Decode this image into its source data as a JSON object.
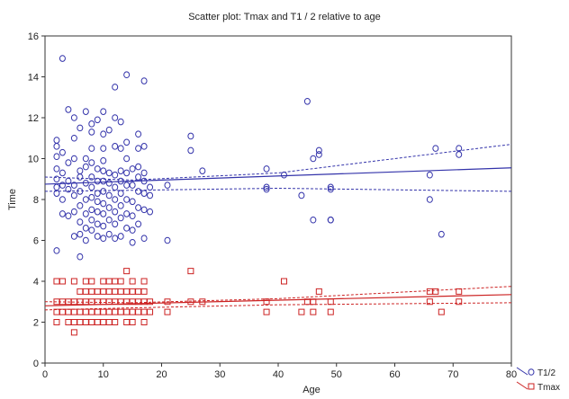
{
  "chart_data": {
    "type": "scatter",
    "title": "Scatter plot: Tmax and T1 / 2 relative to age",
    "xlabel": "Age",
    "ylabel": "Time",
    "xlim": [
      0,
      80
    ],
    "ylim": [
      0,
      16
    ],
    "xticks": [
      "0",
      "10",
      "20",
      "30",
      "40",
      "50",
      "60",
      "70",
      "80"
    ],
    "yticks": [
      "0",
      "2",
      "4",
      "6",
      "8",
      "10",
      "12",
      "14",
      "16"
    ],
    "grid": false,
    "legend_position": "bottom-right-outside",
    "series": [
      {
        "name": "T1/2",
        "color": "#3333aa",
        "marker": "circle",
        "fit_line": {
          "x": [
            0,
            80
          ],
          "y": [
            8.75,
            9.55
          ]
        },
        "confidence_upper": {
          "x": [
            0,
            15,
            40,
            80
          ],
          "y": [
            9.1,
            8.95,
            9.3,
            10.7
          ]
        },
        "confidence_lower": {
          "x": [
            0,
            15,
            40,
            80
          ],
          "y": [
            8.4,
            8.45,
            8.55,
            8.4
          ]
        },
        "points": [
          [
            2,
            5.5
          ],
          [
            2,
            8.3
          ],
          [
            2,
            8.6
          ],
          [
            2,
            9.0
          ],
          [
            2,
            9.5
          ],
          [
            2,
            10.1
          ],
          [
            2,
            10.6
          ],
          [
            2,
            10.9
          ],
          [
            3,
            7.3
          ],
          [
            3,
            8.0
          ],
          [
            3,
            8.7
          ],
          [
            3,
            9.3
          ],
          [
            3,
            10.3
          ],
          [
            3,
            14.9
          ],
          [
            4,
            7.2
          ],
          [
            4,
            8.5
          ],
          [
            4,
            8.9
          ],
          [
            4,
            9.8
          ],
          [
            4,
            12.4
          ],
          [
            5,
            6.2
          ],
          [
            5,
            7.4
          ],
          [
            5,
            8.2
          ],
          [
            5,
            8.7
          ],
          [
            5,
            10.0
          ],
          [
            5,
            11.0
          ],
          [
            5,
            12.0
          ],
          [
            6,
            5.2
          ],
          [
            6,
            6.3
          ],
          [
            6,
            6.9
          ],
          [
            6,
            7.7
          ],
          [
            6,
            8.4
          ],
          [
            6,
            9.1
          ],
          [
            6,
            9.4
          ],
          [
            6,
            11.5
          ],
          [
            7,
            6.0
          ],
          [
            7,
            6.6
          ],
          [
            7,
            7.3
          ],
          [
            7,
            8.0
          ],
          [
            7,
            8.8
          ],
          [
            7,
            9.6
          ],
          [
            7,
            10.0
          ],
          [
            7,
            12.3
          ],
          [
            8,
            6.5
          ],
          [
            8,
            7.0
          ],
          [
            8,
            7.5
          ],
          [
            8,
            8.1
          ],
          [
            8,
            8.6
          ],
          [
            8,
            9.1
          ],
          [
            8,
            9.8
          ],
          [
            8,
            10.5
          ],
          [
            8,
            11.3
          ],
          [
            8,
            11.7
          ],
          [
            9,
            6.2
          ],
          [
            9,
            6.8
          ],
          [
            9,
            7.4
          ],
          [
            9,
            7.9
          ],
          [
            9,
            8.3
          ],
          [
            9,
            8.9
          ],
          [
            9,
            9.5
          ],
          [
            9,
            11.9
          ],
          [
            10,
            6.1
          ],
          [
            10,
            6.7
          ],
          [
            10,
            7.3
          ],
          [
            10,
            7.8
          ],
          [
            10,
            8.4
          ],
          [
            10,
            8.9
          ],
          [
            10,
            9.4
          ],
          [
            10,
            9.9
          ],
          [
            10,
            10.5
          ],
          [
            10,
            11.2
          ],
          [
            10,
            12.3
          ],
          [
            11,
            6.3
          ],
          [
            11,
            7.0
          ],
          [
            11,
            7.6
          ],
          [
            11,
            8.2
          ],
          [
            11,
            8.8
          ],
          [
            11,
            9.3
          ],
          [
            11,
            11.4
          ],
          [
            12,
            6.1
          ],
          [
            12,
            6.8
          ],
          [
            12,
            7.4
          ],
          [
            12,
            8.0
          ],
          [
            12,
            8.6
          ],
          [
            12,
            9.2
          ],
          [
            12,
            10.6
          ],
          [
            12,
            12.0
          ],
          [
            12,
            13.5
          ],
          [
            13,
            6.2
          ],
          [
            13,
            7.1
          ],
          [
            13,
            7.7
          ],
          [
            13,
            8.3
          ],
          [
            13,
            8.9
          ],
          [
            13,
            9.4
          ],
          [
            13,
            10.5
          ],
          [
            13,
            11.8
          ],
          [
            14,
            6.6
          ],
          [
            14,
            7.3
          ],
          [
            14,
            8.0
          ],
          [
            14,
            8.7
          ],
          [
            14,
            9.3
          ],
          [
            14,
            10.0
          ],
          [
            14,
            10.8
          ],
          [
            14,
            14.1
          ],
          [
            15,
            5.9
          ],
          [
            15,
            6.5
          ],
          [
            15,
            7.2
          ],
          [
            15,
            7.9
          ],
          [
            15,
            8.7
          ],
          [
            15,
            9.5
          ],
          [
            16,
            6.8
          ],
          [
            16,
            7.6
          ],
          [
            16,
            8.4
          ],
          [
            16,
            9.1
          ],
          [
            16,
            9.6
          ],
          [
            16,
            10.5
          ],
          [
            16,
            11.2
          ],
          [
            17,
            6.1
          ],
          [
            17,
            7.5
          ],
          [
            17,
            8.3
          ],
          [
            17,
            8.9
          ],
          [
            17,
            9.3
          ],
          [
            17,
            10.6
          ],
          [
            17,
            13.8
          ],
          [
            18,
            7.4
          ],
          [
            18,
            8.2
          ],
          [
            18,
            8.6
          ],
          [
            21,
            6.0
          ],
          [
            21,
            8.7
          ],
          [
            25,
            10.4
          ],
          [
            25,
            11.1
          ],
          [
            27,
            9.4
          ],
          [
            38,
            8.5
          ],
          [
            38,
            8.6
          ],
          [
            38,
            9.5
          ],
          [
            41,
            9.2
          ],
          [
            44,
            8.2
          ],
          [
            45,
            12.8
          ],
          [
            46,
            7.0
          ],
          [
            46,
            10.0
          ],
          [
            47,
            10.2
          ],
          [
            47,
            10.4
          ],
          [
            49,
            7.0
          ],
          [
            49,
            7.0
          ],
          [
            49,
            8.5
          ],
          [
            49,
            8.6
          ],
          [
            66,
            8.0
          ],
          [
            66,
            9.2
          ],
          [
            67,
            10.5
          ],
          [
            68,
            6.3
          ],
          [
            71,
            10.2
          ],
          [
            71,
            10.5
          ]
        ]
      },
      {
        "name": "Tmax",
        "color": "#cc2222",
        "marker": "square",
        "fit_line": {
          "x": [
            0,
            80
          ],
          "y": [
            2.8,
            3.35
          ]
        },
        "confidence_upper": {
          "x": [
            0,
            15,
            40,
            80
          ],
          "y": [
            3.0,
            2.95,
            3.15,
            3.75
          ]
        },
        "confidence_lower": {
          "x": [
            0,
            15,
            40,
            80
          ],
          "y": [
            2.6,
            2.7,
            2.85,
            2.95
          ]
        },
        "points": [
          [
            2,
            2.0
          ],
          [
            2,
            2.5
          ],
          [
            2,
            3.0
          ],
          [
            2,
            4.0
          ],
          [
            3,
            2.5
          ],
          [
            3,
            3.0
          ],
          [
            3,
            4.0
          ],
          [
            4,
            2.0
          ],
          [
            4,
            2.5
          ],
          [
            4,
            3.0
          ],
          [
            5,
            1.5
          ],
          [
            5,
            2.0
          ],
          [
            5,
            2.5
          ],
          [
            5,
            3.0
          ],
          [
            5,
            4.0
          ],
          [
            6,
            2.0
          ],
          [
            6,
            2.5
          ],
          [
            6,
            3.0
          ],
          [
            6,
            3.5
          ],
          [
            7,
            2.0
          ],
          [
            7,
            2.5
          ],
          [
            7,
            3.0
          ],
          [
            7,
            3.5
          ],
          [
            7,
            4.0
          ],
          [
            8,
            2.0
          ],
          [
            8,
            2.5
          ],
          [
            8,
            3.0
          ],
          [
            8,
            3.5
          ],
          [
            8,
            4.0
          ],
          [
            9,
            2.0
          ],
          [
            9,
            2.5
          ],
          [
            9,
            3.0
          ],
          [
            9,
            3.5
          ],
          [
            10,
            2.0
          ],
          [
            10,
            2.5
          ],
          [
            10,
            3.0
          ],
          [
            10,
            3.5
          ],
          [
            10,
            4.0
          ],
          [
            11,
            2.0
          ],
          [
            11,
            2.5
          ],
          [
            11,
            3.0
          ],
          [
            11,
            3.5
          ],
          [
            11,
            4.0
          ],
          [
            12,
            2.0
          ],
          [
            12,
            2.5
          ],
          [
            12,
            3.0
          ],
          [
            12,
            3.5
          ],
          [
            12,
            4.0
          ],
          [
            13,
            2.5
          ],
          [
            13,
            3.0
          ],
          [
            13,
            3.5
          ],
          [
            13,
            4.0
          ],
          [
            14,
            2.0
          ],
          [
            14,
            2.5
          ],
          [
            14,
            3.0
          ],
          [
            14,
            3.5
          ],
          [
            14,
            4.5
          ],
          [
            15,
            2.0
          ],
          [
            15,
            2.5
          ],
          [
            15,
            3.0
          ],
          [
            15,
            3.5
          ],
          [
            15,
            4.0
          ],
          [
            16,
            2.5
          ],
          [
            16,
            3.0
          ],
          [
            16,
            3.5
          ],
          [
            17,
            2.0
          ],
          [
            17,
            2.5
          ],
          [
            17,
            3.0
          ],
          [
            17,
            3.5
          ],
          [
            17,
            4.0
          ],
          [
            18,
            2.5
          ],
          [
            18,
            3.0
          ],
          [
            21,
            2.5
          ],
          [
            21,
            3.0
          ],
          [
            25,
            3.0
          ],
          [
            25,
            4.5
          ],
          [
            27,
            3.0
          ],
          [
            38,
            2.5
          ],
          [
            38,
            3.0
          ],
          [
            41,
            4.0
          ],
          [
            44,
            2.5
          ],
          [
            45,
            3.0
          ],
          [
            46,
            2.5
          ],
          [
            46,
            3.0
          ],
          [
            47,
            3.5
          ],
          [
            49,
            2.5
          ],
          [
            49,
            3.0
          ],
          [
            66,
            3.0
          ],
          [
            66,
            3.5
          ],
          [
            67,
            3.5
          ],
          [
            68,
            2.5
          ],
          [
            71,
            3.0
          ],
          [
            71,
            3.5
          ]
        ]
      }
    ]
  }
}
